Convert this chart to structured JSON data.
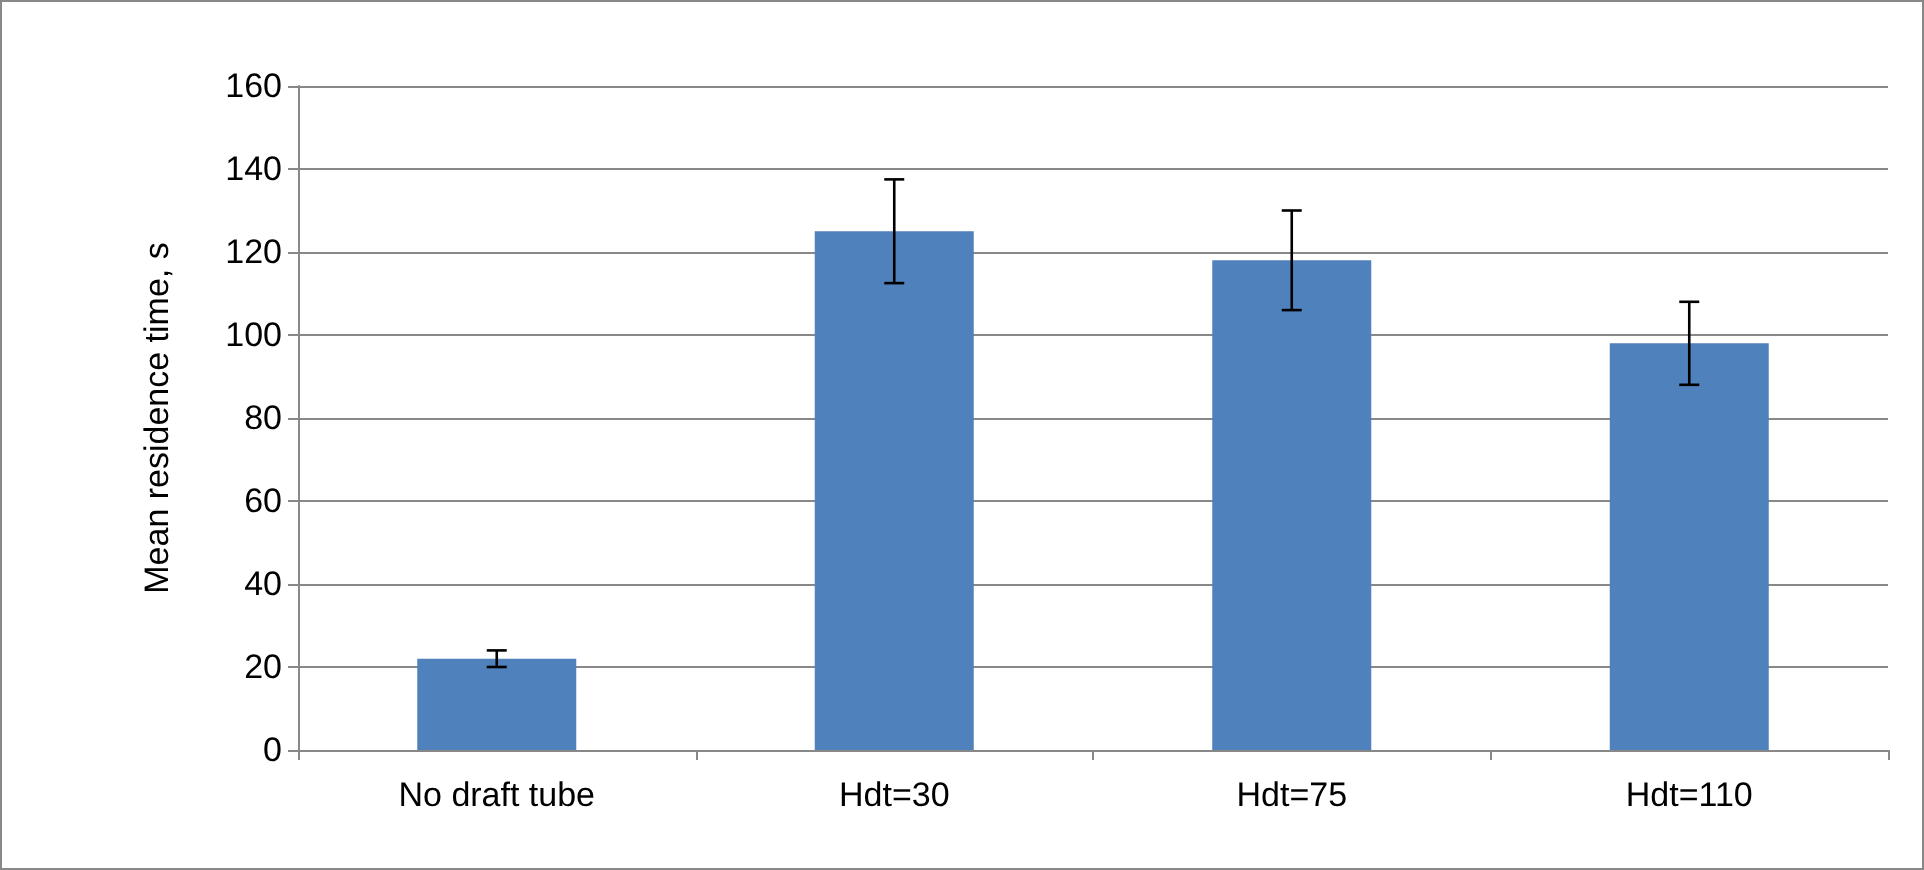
{
  "chart_data": {
    "type": "bar",
    "ylabel": "Mean residence time, s",
    "categories": [
      "No draft tube",
      "Hdt=30",
      "Hdt=75",
      "Hdt=110"
    ],
    "values": [
      22,
      125,
      118,
      98
    ],
    "errors": [
      2,
      12.5,
      12,
      10
    ],
    "color": "#4f81bd",
    "ylim": [
      0,
      160
    ],
    "yticks": [
      0,
      20,
      40,
      60,
      80,
      100,
      120,
      140,
      160
    ],
    "grid": "y"
  }
}
